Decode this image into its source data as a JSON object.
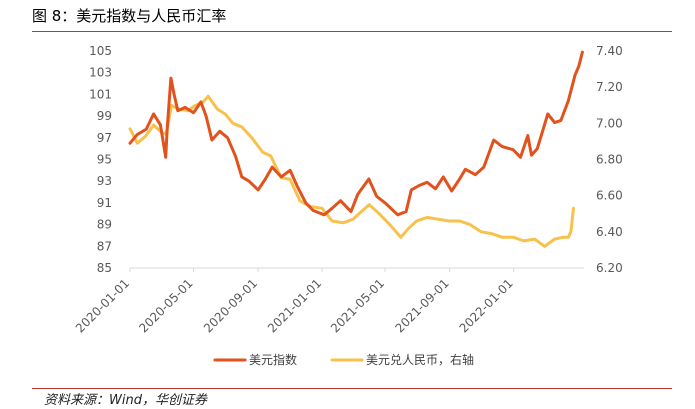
{
  "figure": {
    "title": "图 8：美元指数与人民币汇率",
    "source": "资料来源：Wind，华创证券"
  },
  "chart_data": {
    "type": "line",
    "title": "图 8：美元指数与人民币汇率",
    "x_ticks": [
      "2020-01-01",
      "2020-05-01",
      "2020-09-01",
      "2021-01-01",
      "2021-05-01",
      "2021-09-01",
      "2022-01-01"
    ],
    "x_range": [
      "2020-01-01",
      "2022-05-15"
    ],
    "y_left": {
      "range": [
        85,
        105
      ],
      "ticks": [
        "105",
        "103",
        "101",
        "99",
        "97",
        "95",
        "93",
        "91",
        "89",
        "87",
        "85"
      ]
    },
    "y_right": {
      "range": [
        6.2,
        7.4
      ],
      "ticks": [
        "7.40",
        "7.20",
        "7.00",
        "6.80",
        "6.60",
        "6.40",
        "6.20"
      ]
    },
    "grid": false,
    "legend_position": "bottom",
    "series": [
      {
        "name": "美元指数",
        "axis": "left",
        "color": "#e2521d",
        "points": [
          [
            "2020-01-01",
            96.5
          ],
          [
            "2020-01-15",
            97.3
          ],
          [
            "2020-02-01",
            97.8
          ],
          [
            "2020-02-15",
            99.2
          ],
          [
            "2020-02-28",
            98.2
          ],
          [
            "2020-03-09",
            95.2
          ],
          [
            "2020-03-12",
            98.0
          ],
          [
            "2020-03-19",
            102.5
          ],
          [
            "2020-03-25",
            101.0
          ],
          [
            "2020-04-01",
            99.5
          ],
          [
            "2020-04-15",
            99.8
          ],
          [
            "2020-05-01",
            99.3
          ],
          [
            "2020-05-15",
            100.3
          ],
          [
            "2020-05-25",
            99.0
          ],
          [
            "2020-06-05",
            96.8
          ],
          [
            "2020-06-20",
            97.6
          ],
          [
            "2020-07-05",
            97.0
          ],
          [
            "2020-07-20",
            95.3
          ],
          [
            "2020-08-01",
            93.4
          ],
          [
            "2020-08-15",
            93.0
          ],
          [
            "2020-09-01",
            92.2
          ],
          [
            "2020-09-15",
            93.2
          ],
          [
            "2020-09-28",
            94.3
          ],
          [
            "2020-10-15",
            93.4
          ],
          [
            "2020-11-01",
            94.0
          ],
          [
            "2020-11-15",
            92.5
          ],
          [
            "2020-12-01",
            91.0
          ],
          [
            "2020-12-15",
            90.3
          ],
          [
            "2021-01-05",
            89.9
          ],
          [
            "2021-01-20",
            90.5
          ],
          [
            "2021-02-05",
            91.2
          ],
          [
            "2021-02-25",
            90.2
          ],
          [
            "2021-03-10",
            91.8
          ],
          [
            "2021-03-31",
            93.2
          ],
          [
            "2021-04-15",
            91.6
          ],
          [
            "2021-05-01",
            91.0
          ],
          [
            "2021-05-25",
            89.9
          ],
          [
            "2021-06-10",
            90.2
          ],
          [
            "2021-06-20",
            92.2
          ],
          [
            "2021-07-05",
            92.6
          ],
          [
            "2021-07-20",
            92.9
          ],
          [
            "2021-08-05",
            92.3
          ],
          [
            "2021-08-20",
            93.4
          ],
          [
            "2021-09-05",
            92.1
          ],
          [
            "2021-09-20",
            93.2
          ],
          [
            "2021-10-01",
            94.1
          ],
          [
            "2021-10-20",
            93.6
          ],
          [
            "2021-11-05",
            94.3
          ],
          [
            "2021-11-24",
            96.8
          ],
          [
            "2021-12-10",
            96.2
          ],
          [
            "2021-12-31",
            95.9
          ],
          [
            "2022-01-14",
            95.2
          ],
          [
            "2022-01-28",
            97.2
          ],
          [
            "2022-02-04",
            95.4
          ],
          [
            "2022-02-15",
            96.0
          ],
          [
            "2022-03-07",
            99.2
          ],
          [
            "2022-03-20",
            98.4
          ],
          [
            "2022-04-01",
            98.6
          ],
          [
            "2022-04-15",
            100.4
          ],
          [
            "2022-04-28",
            102.8
          ],
          [
            "2022-05-05",
            103.6
          ],
          [
            "2022-05-12",
            104.9
          ]
        ]
      },
      {
        "name": "美元兑人民币，右轴",
        "axis": "right",
        "color": "#f7c14c",
        "points": [
          [
            "2020-01-01",
            6.97
          ],
          [
            "2020-01-15",
            6.89
          ],
          [
            "2020-01-31",
            6.93
          ],
          [
            "2020-02-15",
            6.99
          ],
          [
            "2020-03-01",
            6.95
          ],
          [
            "2020-03-10",
            6.94
          ],
          [
            "2020-03-20",
            7.1
          ],
          [
            "2020-04-01",
            7.08
          ],
          [
            "2020-04-20",
            7.07
          ],
          [
            "2020-05-05",
            7.1
          ],
          [
            "2020-05-20",
            7.12
          ],
          [
            "2020-05-29",
            7.15
          ],
          [
            "2020-06-15",
            7.08
          ],
          [
            "2020-07-01",
            7.05
          ],
          [
            "2020-07-15",
            7.0
          ],
          [
            "2020-08-01",
            6.98
          ],
          [
            "2020-08-20",
            6.92
          ],
          [
            "2020-09-10",
            6.84
          ],
          [
            "2020-09-25",
            6.82
          ],
          [
            "2020-10-15",
            6.7
          ],
          [
            "2020-11-01",
            6.69
          ],
          [
            "2020-11-20",
            6.57
          ],
          [
            "2020-12-10",
            6.54
          ],
          [
            "2021-01-01",
            6.53
          ],
          [
            "2021-01-20",
            6.46
          ],
          [
            "2021-02-10",
            6.45
          ],
          [
            "2021-03-01",
            6.47
          ],
          [
            "2021-03-20",
            6.52
          ],
          [
            "2021-04-01",
            6.55
          ],
          [
            "2021-04-20",
            6.5
          ],
          [
            "2021-05-10",
            6.44
          ],
          [
            "2021-05-31",
            6.37
          ],
          [
            "2021-06-15",
            6.42
          ],
          [
            "2021-06-30",
            6.46
          ],
          [
            "2021-07-20",
            6.48
          ],
          [
            "2021-08-10",
            6.47
          ],
          [
            "2021-08-31",
            6.46
          ],
          [
            "2021-09-20",
            6.46
          ],
          [
            "2021-10-10",
            6.44
          ],
          [
            "2021-10-31",
            6.4
          ],
          [
            "2021-11-20",
            6.39
          ],
          [
            "2021-12-10",
            6.37
          ],
          [
            "2022-01-01",
            6.37
          ],
          [
            "2022-01-20",
            6.35
          ],
          [
            "2022-02-10",
            6.36
          ],
          [
            "2022-03-01",
            6.32
          ],
          [
            "2022-03-20",
            6.36
          ],
          [
            "2022-04-05",
            6.37
          ],
          [
            "2022-04-15",
            6.37
          ],
          [
            "2022-04-20",
            6.4
          ],
          [
            "2022-04-25",
            6.53
          ]
        ]
      }
    ]
  }
}
